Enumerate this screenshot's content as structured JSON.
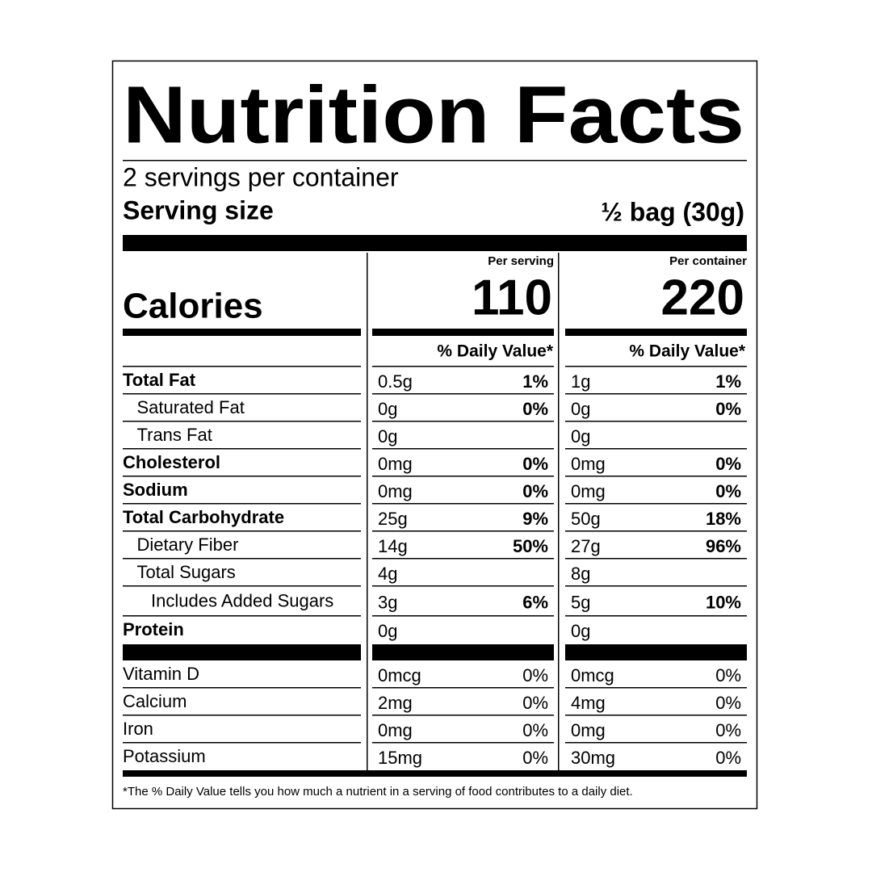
{
  "title": "Nutrition Facts",
  "servings_per_container": "2 servings per container",
  "serving_size": {
    "label": "Serving size",
    "value": "½ bag (30g)"
  },
  "columns": {
    "serving": "Per serving",
    "container": "Per container"
  },
  "calories": {
    "label": "Calories",
    "serving": "110",
    "container": "220"
  },
  "daily_value_header": "% Daily Value*",
  "nutrients": [
    {
      "name": "Total Fat",
      "indent": 0,
      "bold": true,
      "serving": {
        "amount": "0.5g",
        "dv": "1%"
      },
      "container": {
        "amount": "1g",
        "dv": "1%"
      }
    },
    {
      "name": "Saturated Fat",
      "indent": 1,
      "bold": false,
      "serving": {
        "amount": "0g",
        "dv": "0%"
      },
      "container": {
        "amount": "0g",
        "dv": "0%"
      }
    },
    {
      "name": "Trans Fat",
      "indent": 1,
      "bold": false,
      "serving": {
        "amount": "0g"
      },
      "container": {
        "amount": "0g"
      }
    },
    {
      "name": "Cholesterol",
      "indent": 0,
      "bold": true,
      "serving": {
        "amount": "0mg",
        "dv": "0%"
      },
      "container": {
        "amount": "0mg",
        "dv": "0%"
      }
    },
    {
      "name": "Sodium",
      "indent": 0,
      "bold": true,
      "serving": {
        "amount": "0mg",
        "dv": "0%"
      },
      "container": {
        "amount": "0mg",
        "dv": "0%"
      }
    },
    {
      "name": "Total Carbohydrate",
      "indent": 0,
      "bold": true,
      "serving": {
        "amount": "25g",
        "dv": "9%"
      },
      "container": {
        "amount": "50g",
        "dv": "18%"
      }
    },
    {
      "name": "Dietary Fiber",
      "indent": 1,
      "bold": false,
      "serving": {
        "amount": "14g",
        "dv": "50%"
      },
      "container": {
        "amount": "27g",
        "dv": "96%"
      }
    },
    {
      "name": "Total Sugars",
      "indent": 1,
      "bold": false,
      "serving": {
        "amount": "4g"
      },
      "container": {
        "amount": "8g"
      }
    },
    {
      "name": "Includes Added Sugars",
      "indent": 2,
      "bold": false,
      "serving": {
        "amount": "3g",
        "dv": "6%"
      },
      "container": {
        "amount": "5g",
        "dv": "10%"
      }
    },
    {
      "name": "Protein",
      "indent": 0,
      "bold": true,
      "serving": {
        "amount": "0g"
      },
      "container": {
        "amount": "0g"
      }
    }
  ],
  "minerals": [
    {
      "name": "Vitamin D",
      "serving": {
        "amount": "0mcg",
        "dv": "0%"
      },
      "container": {
        "amount": "0mcg",
        "dv": "0%"
      }
    },
    {
      "name": "Calcium",
      "serving": {
        "amount": "2mg",
        "dv": "0%"
      },
      "container": {
        "amount": "4mg",
        "dv": "0%"
      }
    },
    {
      "name": "Iron",
      "serving": {
        "amount": "0mg",
        "dv": "0%"
      },
      "container": {
        "amount": "0mg",
        "dv": "0%"
      }
    },
    {
      "name": "Potassium",
      "serving": {
        "amount": "15mg",
        "dv": "0%"
      },
      "container": {
        "amount": "30mg",
        "dv": "0%"
      }
    }
  ],
  "footnote": "*The % Daily Value tells you how much a nutrient in a serving of food contributes to a daily diet."
}
